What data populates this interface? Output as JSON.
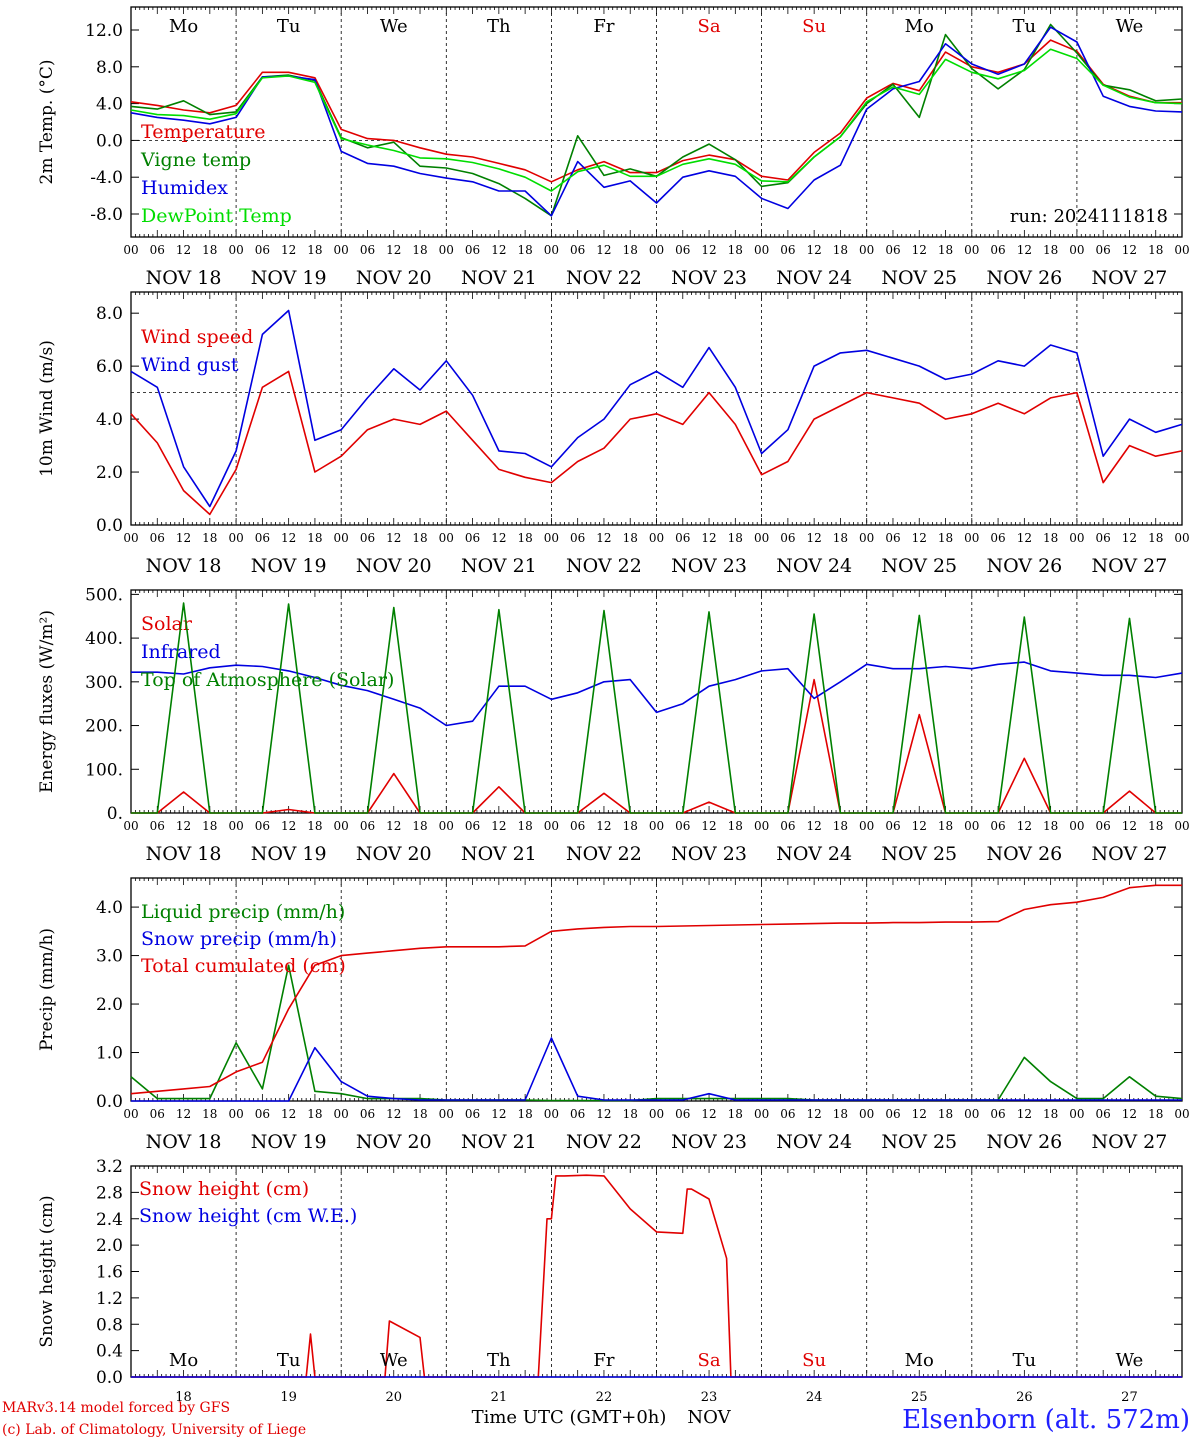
{
  "footer": {
    "credit_line1": "MARv3.14 model forced by GFS",
    "credit_line2": "(c) Lab. of Climatology, University of Liege",
    "x_title": "Time UTC (GMT+0h)",
    "x_title_month": "NOV",
    "station": "Elsenborn (alt. 572m)"
  },
  "axis": {
    "days": [
      "NOV 18",
      "NOV 19",
      "NOV 20",
      "NOV 21",
      "NOV 22",
      "NOV 23",
      "NOV 24",
      "NOV 25",
      "NOV 26",
      "NOV 27"
    ],
    "day_numbers": [
      "18",
      "19",
      "20",
      "21",
      "22",
      "23",
      "24",
      "25",
      "26",
      "27"
    ],
    "weekdays": [
      "Mo",
      "Tu",
      "We",
      "Th",
      "Fr",
      "Sa",
      "Su",
      "Mo",
      "Tu",
      "We"
    ],
    "hour_labels": [
      "00",
      "06",
      "12",
      "18"
    ],
    "last_hour_label": "00",
    "weekend_color": "#e00000",
    "weekend_index": [
      5,
      6
    ]
  },
  "chart_data": [
    {
      "type": "line",
      "ylabel": "2m Temp. (°C)",
      "ylim": [
        -10.5,
        14.5
      ],
      "yticks": [
        -8,
        -4,
        0,
        4,
        8,
        12
      ],
      "ytick_labels": [
        "-8.0",
        "-4.0",
        "0.0",
        "4.0",
        "8.0",
        "12.0"
      ],
      "ref_line": 0,
      "annotation": "run: 2024111818",
      "x_hours": [
        0,
        6,
        12,
        18,
        24,
        30,
        36,
        42,
        48,
        54,
        60,
        66,
        72,
        78,
        84,
        90,
        96,
        102,
        108,
        114,
        120,
        126,
        132,
        138,
        144,
        150,
        156,
        162,
        168,
        174,
        180,
        186,
        192,
        198,
        204,
        210,
        216,
        222,
        228,
        234,
        240
      ],
      "series": [
        {
          "name": "Temperature",
          "color": "#e00000",
          "values": [
            4.2,
            3.8,
            3.3,
            3.0,
            3.8,
            7.4,
            7.4,
            6.8,
            1.2,
            0.2,
            0,
            -0.8,
            -1.5,
            -1.8,
            -2.5,
            -3.2,
            -4.5,
            -3.2,
            -2.3,
            -3.5,
            -3.5,
            -2.2,
            -1.6,
            -2.1,
            -3.9,
            -4.3,
            -1.3,
            0.8,
            4.6,
            6.2,
            5.4,
            9.6,
            8.0,
            7.4,
            8.3,
            10.9,
            9.7,
            6.1,
            4.8,
            4.1,
            4.1
          ]
        },
        {
          "name": "Vigne temp",
          "color": "#008000",
          "values": [
            3.7,
            3.4,
            4.3,
            2.8,
            3.1,
            6.9,
            7.1,
            6.5,
            0.3,
            -0.8,
            -0.2,
            -2.8,
            -3.0,
            -3.6,
            -4.7,
            -6.3,
            -8.2,
            0.5,
            -3.8,
            -3.1,
            -3.9,
            -1.8,
            -0.4,
            -2.1,
            -5.0,
            -4.6,
            -1.8,
            0.4,
            4.0,
            6.1,
            2.5,
            11.5,
            7.8,
            5.6,
            7.7,
            12.6,
            9.5,
            6.0,
            5.5,
            4.3,
            4.5
          ]
        },
        {
          "name": "Humidex",
          "color": "#0000e0",
          "values": [
            3.0,
            2.5,
            2.2,
            1.8,
            2.5,
            6.9,
            7.0,
            6.6,
            -1.2,
            -2.5,
            -2.8,
            -3.6,
            -4.1,
            -4.5,
            -5.5,
            -5.5,
            -8.2,
            -2.3,
            -5.1,
            -4.4,
            -6.8,
            -4.0,
            -3.3,
            -3.9,
            -6.3,
            -7.4,
            -4.3,
            -2.7,
            3.4,
            5.6,
            6.4,
            10.5,
            8.3,
            7.2,
            8.3,
            12.3,
            10.7,
            4.8,
            3.7,
            3.2,
            3.1
          ]
        },
        {
          "name": "DewPoint Temp",
          "color": "#00dd00",
          "values": [
            3.3,
            2.8,
            2.7,
            2.3,
            2.9,
            6.8,
            7.0,
            6.3,
            0.2,
            -0.5,
            -1.1,
            -1.9,
            -2.0,
            -2.4,
            -3.1,
            -4.0,
            -5.5,
            -3.4,
            -2.7,
            -3.9,
            -3.9,
            -2.6,
            -2.0,
            -2.6,
            -4.4,
            -4.5,
            -1.8,
            0.4,
            4.2,
            5.8,
            5.0,
            8.8,
            7.4,
            6.7,
            7.6,
            9.9,
            8.9,
            6.0,
            4.7,
            4.1,
            4.0
          ]
        }
      ]
    },
    {
      "type": "line",
      "ylabel": "10m Wind (m/s)",
      "ylim": [
        0,
        8.8
      ],
      "yticks": [
        0,
        2,
        4,
        6,
        8
      ],
      "ytick_labels": [
        "0.0",
        "2.0",
        "4.0",
        "6.0",
        "8.0"
      ],
      "ref_line": 5,
      "x_hours": [
        0,
        6,
        12,
        18,
        24,
        30,
        36,
        42,
        48,
        54,
        60,
        66,
        72,
        78,
        84,
        90,
        96,
        102,
        108,
        114,
        120,
        126,
        132,
        138,
        144,
        150,
        156,
        162,
        168,
        174,
        180,
        186,
        192,
        198,
        204,
        210,
        216,
        222,
        228,
        234,
        240
      ],
      "series": [
        {
          "name": "Wind speed",
          "color": "#e00000",
          "values": [
            4.2,
            3.1,
            1.3,
            0.4,
            2.1,
            5.2,
            5.8,
            2.0,
            2.6,
            3.6,
            4.0,
            3.8,
            4.3,
            3.2,
            2.1,
            1.8,
            1.6,
            2.4,
            2.9,
            4.0,
            4.2,
            3.8,
            5.0,
            3.8,
            1.9,
            2.4,
            4.0,
            4.5,
            5.0,
            4.8,
            4.6,
            4.0,
            4.2,
            4.6,
            4.2,
            4.8,
            5.0,
            1.6,
            3.0,
            2.6,
            2.8
          ]
        },
        {
          "name": "Wind gust",
          "color": "#0000e0",
          "values": [
            5.8,
            5.2,
            2.2,
            0.7,
            2.8,
            7.2,
            8.1,
            3.2,
            3.6,
            4.8,
            5.9,
            5.1,
            6.2,
            4.9,
            2.8,
            2.7,
            2.2,
            3.3,
            4.0,
            5.3,
            5.8,
            5.2,
            6.7,
            5.2,
            2.7,
            3.6,
            6.0,
            6.5,
            6.6,
            6.3,
            6.0,
            5.5,
            5.7,
            6.2,
            6.0,
            6.8,
            6.5,
            2.6,
            4.0,
            3.5,
            3.8
          ]
        }
      ]
    },
    {
      "type": "line",
      "ylabel": "Energy fluxes (W/m²)",
      "ylim": [
        0,
        510
      ],
      "yticks": [
        0,
        100,
        200,
        300,
        400,
        500
      ],
      "ytick_labels": [
        "0.",
        "100.",
        "200.",
        "300.",
        "400.",
        "500."
      ],
      "x_hours": [
        0,
        6,
        12,
        18,
        24,
        30,
        36,
        42,
        48,
        54,
        60,
        66,
        72,
        78,
        84,
        90,
        96,
        102,
        108,
        114,
        120,
        126,
        132,
        138,
        144,
        150,
        156,
        162,
        168,
        174,
        180,
        186,
        192,
        198,
        204,
        210,
        216,
        222,
        228,
        234,
        240
      ],
      "series": [
        {
          "name": "Solar",
          "color": "#e00000",
          "values": [
            0,
            0,
            48,
            0,
            0,
            0,
            8,
            0,
            0,
            0,
            90,
            0,
            0,
            0,
            60,
            0,
            0,
            0,
            45,
            0,
            0,
            0,
            25,
            0,
            0,
            0,
            305,
            0,
            0,
            0,
            225,
            0,
            0,
            0,
            125,
            0,
            0,
            0,
            50,
            0,
            0
          ]
        },
        {
          "name": "Infrared",
          "color": "#0000e0",
          "values": [
            322,
            322,
            318,
            332,
            338,
            335,
            325,
            310,
            292,
            280,
            260,
            240,
            200,
            210,
            290,
            290,
            260,
            275,
            300,
            305,
            230,
            250,
            290,
            305,
            325,
            330,
            262,
            300,
            340,
            330,
            330,
            335,
            330,
            340,
            345,
            325,
            320,
            315,
            315,
            310,
            320
          ]
        },
        {
          "name": "Top of Atmosphere (Solar)",
          "color": "#008000",
          "values": [
            0,
            0,
            480,
            0,
            0,
            0,
            478,
            0,
            0,
            0,
            470,
            0,
            0,
            0,
            465,
            0,
            0,
            0,
            463,
            0,
            0,
            0,
            460,
            0,
            0,
            0,
            455,
            0,
            0,
            0,
            452,
            0,
            0,
            0,
            448,
            0,
            0,
            0,
            445,
            0,
            0
          ]
        }
      ]
    },
    {
      "type": "line",
      "ylabel": "Precip (mm/h)",
      "ylim": [
        0,
        4.6
      ],
      "yticks": [
        0,
        1,
        2,
        3,
        4
      ],
      "ytick_labels": [
        "0.0",
        "1.0",
        "2.0",
        "3.0",
        "4.0"
      ],
      "x_hours": [
        0,
        6,
        12,
        18,
        24,
        30,
        36,
        42,
        48,
        54,
        60,
        66,
        72,
        78,
        84,
        90,
        96,
        102,
        108,
        114,
        120,
        126,
        132,
        138,
        144,
        150,
        156,
        162,
        168,
        174,
        180,
        186,
        192,
        198,
        204,
        210,
        216,
        222,
        228,
        234,
        240
      ],
      "series": [
        {
          "name": "Liquid precip (mm/h)",
          "color": "#008000",
          "values": [
            0.5,
            0.05,
            0.05,
            0.05,
            1.2,
            0.25,
            2.8,
            0.2,
            0.15,
            0.05,
            0.05,
            0.05,
            0.02,
            0.02,
            0.02,
            0.02,
            0.01,
            0.01,
            0.01,
            0.01,
            0.05,
            0.05,
            0.05,
            0.05,
            0.05,
            0.05,
            0.02,
            0.02,
            0.02,
            0.02,
            0.02,
            0.02,
            0.02,
            0.02,
            0.9,
            0.4,
            0.05,
            0.05,
            0.5,
            0.1,
            0.05
          ]
        },
        {
          "name": "Snow precip (mm/h)",
          "color": "#0000e0",
          "values": [
            0,
            0,
            0,
            0,
            0,
            0,
            0,
            1.1,
            0.4,
            0.1,
            0.05,
            0.02,
            0.02,
            0.02,
            0.02,
            0.02,
            1.3,
            0.1,
            0.02,
            0.02,
            0.02,
            0.02,
            0.15,
            0.02,
            0.02,
            0.02,
            0.02,
            0.02,
            0.02,
            0.02,
            0.02,
            0.02,
            0.02,
            0.02,
            0.02,
            0.02,
            0.02,
            0.02,
            0.02,
            0.02,
            0.02
          ]
        },
        {
          "name": "Total cumulated (cm)",
          "color": "#e00000",
          "values": [
            0.15,
            0.2,
            0.25,
            0.3,
            0.6,
            0.8,
            1.9,
            2.8,
            3.0,
            3.05,
            3.1,
            3.15,
            3.18,
            3.18,
            3.18,
            3.2,
            3.5,
            3.55,
            3.58,
            3.6,
            3.6,
            3.61,
            3.62,
            3.63,
            3.64,
            3.65,
            3.66,
            3.67,
            3.67,
            3.68,
            3.68,
            3.69,
            3.69,
            3.7,
            3.95,
            4.05,
            4.1,
            4.2,
            4.4,
            4.45,
            4.45
          ]
        }
      ]
    },
    {
      "type": "line",
      "ylabel": "Snow height (cm)",
      "ylim": [
        0,
        3.2
      ],
      "yticks": [
        0,
        0.4,
        0.8,
        1.2,
        1.6,
        2.0,
        2.4,
        2.8,
        3.2
      ],
      "ytick_labels": [
        "0.0",
        "0.4",
        "0.8",
        "1.2",
        "1.6",
        "2.0",
        "2.4",
        "2.8",
        "3.2"
      ],
      "x_hours": [
        0,
        24,
        40,
        41,
        42,
        43,
        44,
        58,
        59,
        66,
        67,
        68,
        70,
        72,
        92,
        93,
        95,
        96,
        97,
        98,
        99,
        104,
        108,
        114,
        120,
        126,
        127,
        128,
        132,
        136,
        137,
        138,
        240
      ],
      "series": [
        {
          "name": "Snow height (cm)",
          "color": "#e00000",
          "values": [
            0,
            0,
            0,
            0.65,
            0,
            0,
            0,
            0,
            0.85,
            0.6,
            0,
            0,
            0,
            0,
            0,
            0,
            2.4,
            2.4,
            3.05,
            3.05,
            3.05,
            3.06,
            3.05,
            2.55,
            2.2,
            2.18,
            2.85,
            2.85,
            2.7,
            1.8,
            0,
            0,
            0
          ]
        },
        {
          "name": "Snow height (cm W.E.)",
          "color": "#0000e0",
          "values": [
            0,
            0,
            0,
            0,
            0,
            0,
            0,
            0,
            0,
            0,
            0,
            0,
            0,
            0,
            0,
            0,
            0,
            0,
            0,
            0,
            0,
            0,
            0,
            0,
            0,
            0,
            0,
            0,
            0,
            0,
            0,
            0,
            0
          ]
        }
      ]
    }
  ]
}
